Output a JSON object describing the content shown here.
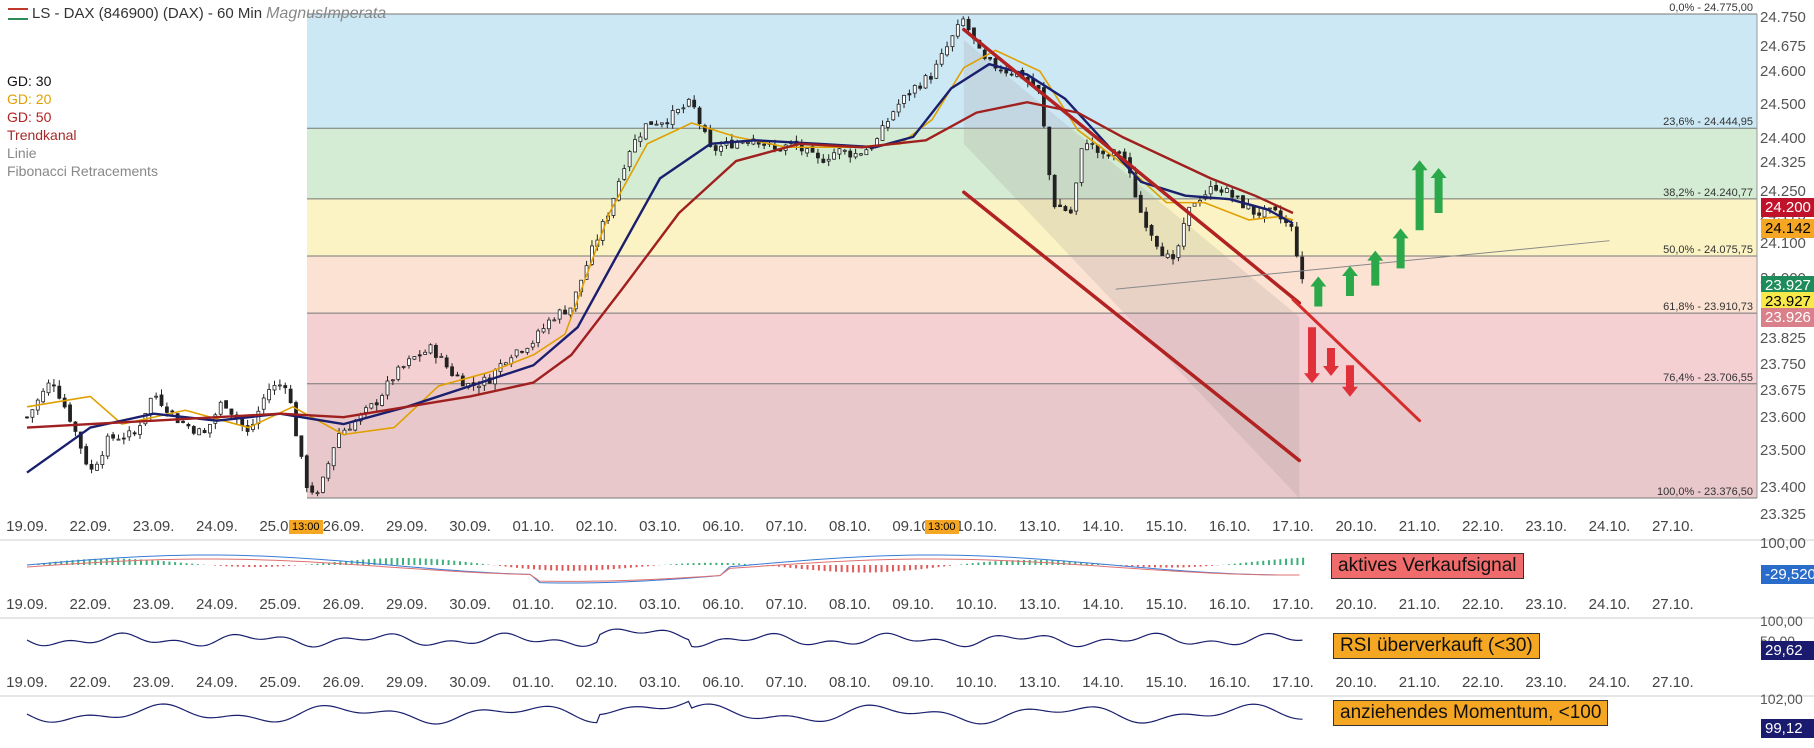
{
  "title": {
    "instrument": "LS - DAX (846900) (DAX) - 60 Min",
    "brand": "MagnusImperata"
  },
  "legend": [
    {
      "label": "GD: 30",
      "color": "#111111"
    },
    {
      "label": "GD: 20",
      "color": "#e0a000"
    },
    {
      "label": "GD: 50",
      "color": "#b22222"
    },
    {
      "label": "Trendkanal",
      "color": "#a52a2a"
    },
    {
      "label": "Linie",
      "color": "#888888"
    },
    {
      "label": "Fibonacci Retracements",
      "color": "#888888"
    }
  ],
  "signals": {
    "macd": "aktives Verkaufsignal",
    "rsi": "RSI überverkauft (<30)",
    "momentum": "anziehendes Momentum, <100"
  },
  "price_boxes": [
    {
      "label": "24.200",
      "bg": "#c0122a",
      "fg": "#ffffff",
      "price": 24200
    },
    {
      "label": "24.142",
      "bg": "#f5a623",
      "fg": "#000000",
      "price": 24142
    },
    {
      "label": "23.927",
      "bg": "#1e8c5a",
      "fg": "#ffffff",
      "price": 23927
    },
    {
      "label": "23.927",
      "bg": "#f7e94a",
      "fg": "#000000",
      "price": 23927
    },
    {
      "label": "23.926",
      "bg": "#d9808a",
      "fg": "#ffffff",
      "price": 23926
    }
  ],
  "sub_boxes": [
    {
      "label": "-29,520",
      "bg": "#2a6cc9",
      "fg": "#ffffff"
    },
    {
      "label": "29,62",
      "bg": "#1a1a6e",
      "fg": "#ffffff"
    },
    {
      "label": "99,12",
      "bg": "#1a1a6e",
      "fg": "#ffffff"
    }
  ],
  "time_marker": "13:00",
  "chart_data": {
    "type": "candlestick",
    "ylim": [
      23325,
      24775
    ],
    "yticks": [
      24750,
      24675,
      24600,
      24500,
      24400,
      24325,
      24250,
      24175,
      24100,
      24000,
      23825,
      23750,
      23675,
      23600,
      23500,
      23400,
      23325
    ],
    "ytick_labels": [
      "24.750",
      "24.675",
      "24.600",
      "24.500",
      "24.400",
      "24.325",
      "24.250",
      "24.175",
      "24.100",
      "24.000",
      "23.825",
      "23.750",
      "23.675",
      "23.600",
      "23.500",
      "23.400",
      "23.325"
    ],
    "dates": [
      "19.09.",
      "22.09.",
      "23.09.",
      "24.09.",
      "25.09.",
      "26.09.",
      "29.09.",
      "30.09.",
      "01.10.",
      "02.10.",
      "03.10.",
      "06.10.",
      "07.10.",
      "08.10.",
      "09.10.",
      "10.10.",
      "13.10.",
      "14.10.",
      "15.10.",
      "16.10.",
      "17.10.",
      "20.10.",
      "21.10.",
      "22.10.",
      "23.10.",
      "24.10.",
      "27.10."
    ],
    "close_path": [
      [
        0,
        23610
      ],
      [
        0.4,
        23720
      ],
      [
        0.7,
        23600
      ],
      [
        1.0,
        23450
      ],
      [
        1.3,
        23550
      ],
      [
        1.7,
        23560
      ],
      [
        2.0,
        23680
      ],
      [
        2.4,
        23600
      ],
      [
        2.8,
        23560
      ],
      [
        3.1,
        23660
      ],
      [
        3.5,
        23560
      ],
      [
        3.8,
        23690
      ],
      [
        4.1,
        23710
      ],
      [
        4.4,
        23420
      ],
      [
        4.6,
        23380
      ],
      [
        4.9,
        23560
      ],
      [
        5.2,
        23600
      ],
      [
        5.5,
        23650
      ],
      [
        5.8,
        23730
      ],
      [
        6.1,
        23780
      ],
      [
        6.4,
        23810
      ],
      [
        6.7,
        23740
      ],
      [
        7.0,
        23700
      ],
      [
        7.3,
        23720
      ],
      [
        7.6,
        23790
      ],
      [
        8.0,
        23830
      ],
      [
        8.3,
        23900
      ],
      [
        8.6,
        23930
      ],
      [
        8.9,
        24080
      ],
      [
        9.2,
        24210
      ],
      [
        9.5,
        24380
      ],
      [
        9.8,
        24460
      ],
      [
        10.1,
        24470
      ],
      [
        10.5,
        24520
      ],
      [
        10.8,
        24380
      ],
      [
        11.1,
        24400
      ],
      [
        11.5,
        24420
      ],
      [
        11.8,
        24380
      ],
      [
        12.1,
        24400
      ],
      [
        12.5,
        24350
      ],
      [
        12.8,
        24380
      ],
      [
        13.1,
        24370
      ],
      [
        13.4,
        24400
      ],
      [
        13.7,
        24500
      ],
      [
        14.0,
        24560
      ],
      [
        14.3,
        24600
      ],
      [
        14.6,
        24700
      ],
      [
        14.8,
        24760
      ],
      [
        15.1,
        24640
      ],
      [
        15.5,
        24610
      ],
      [
        15.7,
        24600
      ],
      [
        16.0,
        24550
      ],
      [
        16.2,
        24230
      ],
      [
        16.5,
        24200
      ],
      [
        16.7,
        24420
      ],
      [
        17.0,
        24360
      ],
      [
        17.3,
        24380
      ],
      [
        17.6,
        24200
      ],
      [
        17.9,
        24100
      ],
      [
        18.1,
        24050
      ],
      [
        18.4,
        24230
      ],
      [
        18.8,
        24280
      ],
      [
        19.1,
        24240
      ],
      [
        19.4,
        24200
      ],
      [
        19.7,
        24200
      ],
      [
        20.0,
        24150
      ],
      [
        20.2,
        23940
      ]
    ],
    "sma20_path": [
      [
        0,
        23640
      ],
      [
        1,
        23670
      ],
      [
        1.5,
        23590
      ],
      [
        2.5,
        23630
      ],
      [
        3.5,
        23580
      ],
      [
        4.2,
        23640
      ],
      [
        5,
        23560
      ],
      [
        5.8,
        23580
      ],
      [
        6.5,
        23700
      ],
      [
        7.3,
        23740
      ],
      [
        8.0,
        23790
      ],
      [
        8.5,
        23850
      ],
      [
        9.2,
        24200
      ],
      [
        9.8,
        24400
      ],
      [
        10.5,
        24460
      ],
      [
        11.2,
        24420
      ],
      [
        12,
        24390
      ],
      [
        13,
        24390
      ],
      [
        13.8,
        24400
      ],
      [
        14.3,
        24470
      ],
      [
        14.8,
        24620
      ],
      [
        15.3,
        24670
      ],
      [
        16,
        24610
      ],
      [
        16.6,
        24440
      ],
      [
        17.4,
        24330
      ],
      [
        18,
        24230
      ],
      [
        18.6,
        24230
      ],
      [
        19.3,
        24180
      ],
      [
        19.8,
        24190
      ],
      [
        20.0,
        24180
      ]
    ],
    "sma30_path": [
      [
        0,
        23450
      ],
      [
        1,
        23580
      ],
      [
        2,
        23620
      ],
      [
        3,
        23600
      ],
      [
        4,
        23620
      ],
      [
        5,
        23590
      ],
      [
        6.0,
        23640
      ],
      [
        7.0,
        23700
      ],
      [
        8.0,
        23760
      ],
      [
        8.7,
        23870
      ],
      [
        9.3,
        24070
      ],
      [
        10.0,
        24300
      ],
      [
        10.8,
        24400
      ],
      [
        11.5,
        24410
      ],
      [
        12.5,
        24400
      ],
      [
        13.4,
        24390
      ],
      [
        14.0,
        24420
      ],
      [
        14.6,
        24560
      ],
      [
        15.2,
        24630
      ],
      [
        15.8,
        24600
      ],
      [
        16.4,
        24530
      ],
      [
        17.0,
        24410
      ],
      [
        17.6,
        24290
      ],
      [
        18.3,
        24250
      ],
      [
        19.0,
        24240
      ],
      [
        19.6,
        24210
      ],
      [
        20.0,
        24170
      ]
    ],
    "sma50_path": [
      [
        0,
        23580
      ],
      [
        1,
        23590
      ],
      [
        2,
        23600
      ],
      [
        3,
        23610
      ],
      [
        4,
        23620
      ],
      [
        5,
        23610
      ],
      [
        6.0,
        23640
      ],
      [
        7.0,
        23670
      ],
      [
        8.0,
        23710
      ],
      [
        8.6,
        23790
      ],
      [
        9.4,
        23980
      ],
      [
        10.3,
        24200
      ],
      [
        11.2,
        24350
      ],
      [
        12.2,
        24400
      ],
      [
        13.2,
        24390
      ],
      [
        14.2,
        24410
      ],
      [
        15.0,
        24490
      ],
      [
        15.8,
        24520
      ],
      [
        16.6,
        24490
      ],
      [
        17.3,
        24420
      ],
      [
        18.0,
        24360
      ],
      [
        18.7,
        24300
      ],
      [
        19.4,
        24250
      ],
      [
        20.0,
        24200
      ]
    ],
    "trend_channel": [
      [
        [
          14.8,
          24730
        ],
        [
          20.1,
          23940
        ]
      ],
      [
        [
          14.8,
          24260
        ],
        [
          20.1,
          23485
        ]
      ],
      [
        [
          20.0,
          23950
        ],
        [
          22.0,
          23600
        ]
      ]
    ],
    "support_line": [
      [
        17.2,
        23980
      ],
      [
        25.0,
        24120
      ]
    ],
    "fibonacci": [
      {
        "label": "0,0% - 24.775,00",
        "price": 24775,
        "fill": "#cce8f4"
      },
      {
        "label": "23,6% - 24.444,95",
        "price": 24444.95,
        "fill": "#d3ecd3"
      },
      {
        "label": "38,2% - 24.240,77",
        "price": 24240.77,
        "fill": "#fbf3c4"
      },
      {
        "label": "50,0% - 24.075,75",
        "price": 24075.75,
        "fill": "#fbe2d2"
      },
      {
        "label": "61,8% - 23.910,73",
        "price": 23910.73,
        "fill": "#f5d0d3"
      },
      {
        "label": "76,4% - 23.706,55",
        "price": 23706.55,
        "fill": "#e8c8ca"
      },
      {
        "label": "100,0% - 23.376,50",
        "price": 23376.5,
        "fill": ""
      }
    ],
    "up_arrows": [
      [
        20.4,
        23930,
        30
      ],
      [
        20.9,
        23960,
        30
      ],
      [
        21.3,
        23990,
        35
      ],
      [
        21.7,
        24040,
        40
      ],
      [
        22.0,
        24150,
        70
      ],
      [
        22.3,
        24200,
        45
      ]
    ],
    "down_arrows": [
      [
        20.3,
        23870,
        80
      ],
      [
        20.6,
        23810,
        40
      ],
      [
        20.9,
        23760,
        45
      ]
    ]
  }
}
